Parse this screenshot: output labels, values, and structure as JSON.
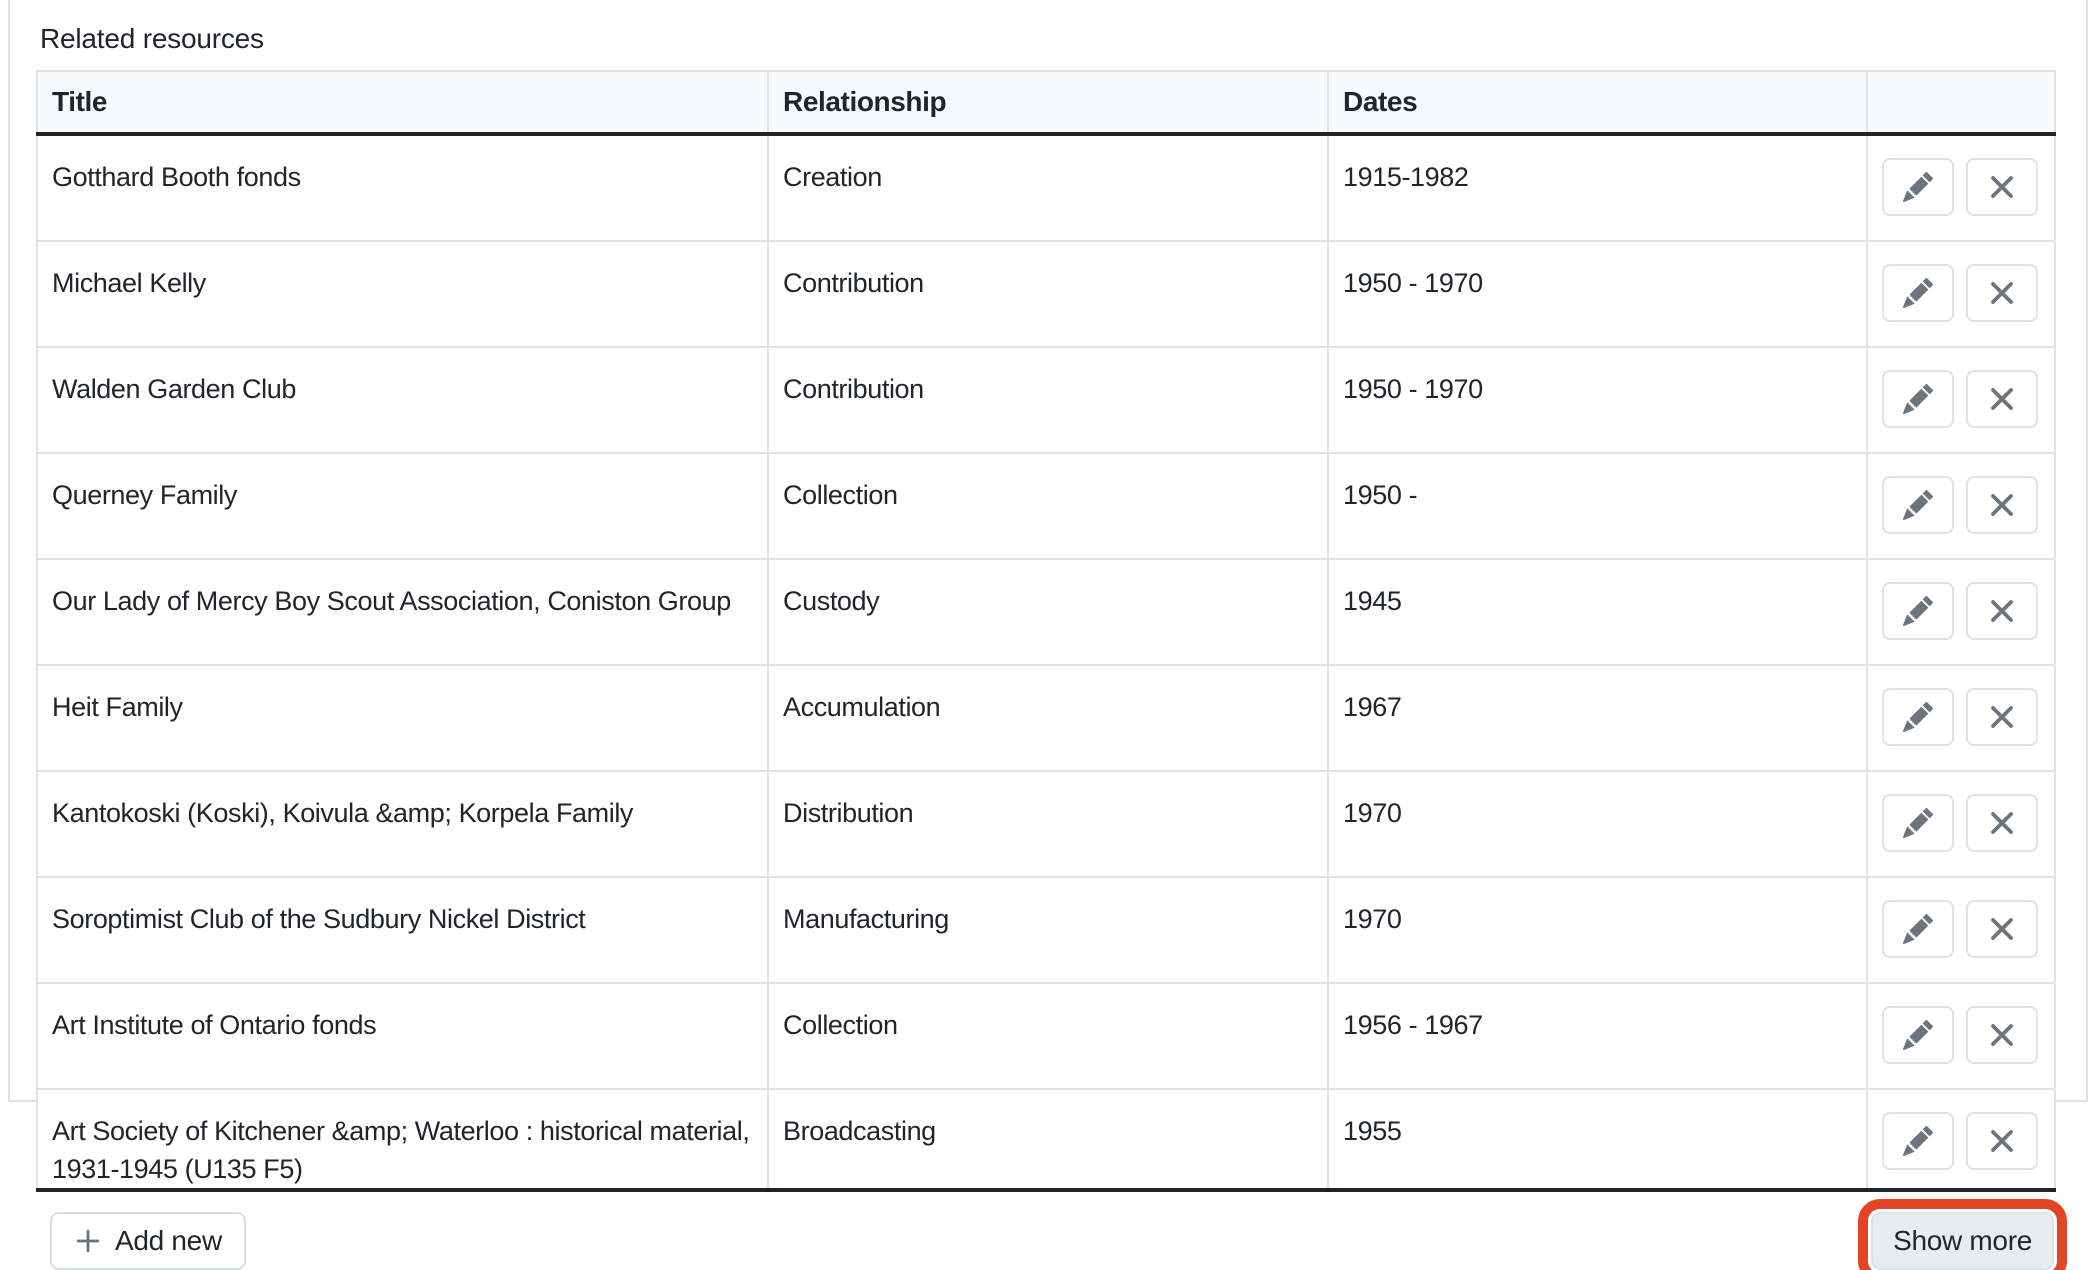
{
  "section_title": "Related resources",
  "table": {
    "headers": {
      "title": "Title",
      "relationship": "Relationship",
      "dates": "Dates",
      "actions": ""
    },
    "rows": [
      {
        "title": "Gotthard Booth fonds",
        "relationship": "Creation",
        "dates": "1915-1982"
      },
      {
        "title": "Michael Kelly",
        "relationship": "Contribution",
        "dates": "1950 - 1970"
      },
      {
        "title": "Walden Garden Club",
        "relationship": "Contribution",
        "dates": "1950 - 1970"
      },
      {
        "title": "Querney Family",
        "relationship": "Collection",
        "dates": "1950 -"
      },
      {
        "title": "Our Lady of Mercy Boy Scout Association, Coniston Group",
        "relationship": "Custody",
        "dates": "1945"
      },
      {
        "title": "Heit Family",
        "relationship": "Accumulation",
        "dates": "1967"
      },
      {
        "title": "Kantokoski (Koski), Koivula &amp; Korpela Family",
        "relationship": "Distribution",
        "dates": "1970"
      },
      {
        "title": "Soroptimist Club of the Sudbury Nickel District",
        "relationship": "Manufacturing",
        "dates": "1970"
      },
      {
        "title": "Art Institute of Ontario fonds",
        "relationship": "Collection",
        "dates": "1956 - 1967"
      },
      {
        "title": "Art Society of Kitchener &amp; Waterloo : historical material, 1931-1945 (U135 F5)",
        "relationship": "Broadcasting",
        "dates": "1955"
      }
    ]
  },
  "row_actions": {
    "edit_icon": "pencil-icon",
    "remove_icon": "x-icon"
  },
  "footer": {
    "add_new_label": "Add new",
    "show_more_label": "Show more"
  },
  "colors": {
    "annotation_red": "#e24426",
    "header_bg": "#f8f9fa",
    "border_light": "#dee2e6",
    "border_dark": "#212529",
    "icon_gray": "#6c757d",
    "show_more_bg": "#e9ecef"
  }
}
